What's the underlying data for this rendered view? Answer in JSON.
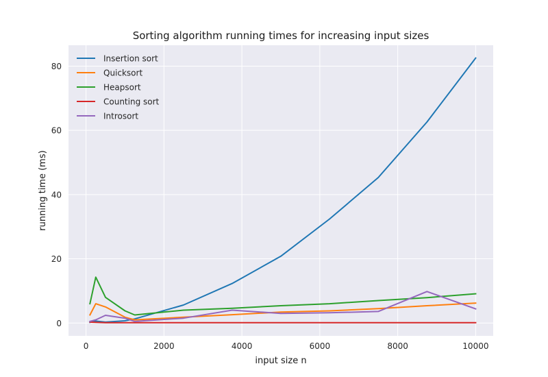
{
  "chart_data": {
    "type": "line",
    "title": "Sorting algorithm running times for increasing input sizes",
    "xlabel": "input size n",
    "ylabel": "running time (ms)",
    "xlim": [
      -450,
      10450
    ],
    "ylim": [
      -4,
      86.5
    ],
    "x_ticks": [
      0,
      2000,
      4000,
      6000,
      8000,
      10000
    ],
    "y_ticks": [
      0,
      20,
      40,
      60,
      80
    ],
    "grid": true,
    "legend_position": "top-left",
    "background": "#eaeaf2",
    "x": [
      100,
      250,
      500,
      1000,
      1250,
      2500,
      3750,
      5000,
      6250,
      7500,
      8750,
      10000
    ],
    "series": [
      {
        "name": "Insertion sort",
        "color": "#1f77b4",
        "values": [
          0.2,
          0.6,
          0.3,
          0.7,
          1.3,
          5.6,
          12.3,
          20.8,
          32.4,
          45.3,
          62.6,
          82.5
        ]
      },
      {
        "name": "Quicksort",
        "color": "#ff7f0e",
        "values": [
          2.5,
          6.0,
          5.0,
          1.8,
          1.0,
          1.8,
          2.6,
          3.4,
          3.8,
          4.5,
          5.4,
          6.2
        ]
      },
      {
        "name": "Heapsort",
        "color": "#2ca02c",
        "values": [
          6.0,
          14.3,
          8.0,
          3.8,
          2.5,
          4.0,
          4.6,
          5.4,
          6.0,
          7.0,
          7.9,
          9.1
        ]
      },
      {
        "name": "Counting sort",
        "color": "#d62728",
        "values": [
          0.3,
          0.2,
          0.1,
          0.1,
          0.1,
          0.1,
          0.1,
          0.1,
          0.1,
          0.1,
          0.1,
          0.1
        ]
      },
      {
        "name": "Introsort",
        "color": "#9467bd",
        "values": [
          0.5,
          1.0,
          2.4,
          1.5,
          0.5,
          1.5,
          4.0,
          3.0,
          3.2,
          3.6,
          9.8,
          4.4
        ]
      }
    ]
  }
}
